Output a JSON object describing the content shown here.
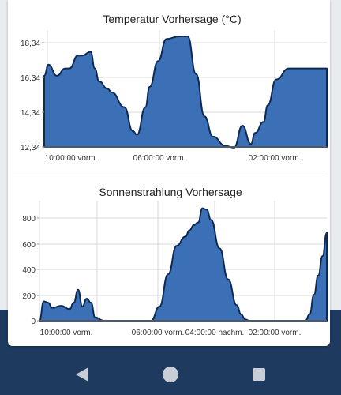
{
  "colors": {
    "fill": "#3b6fb6",
    "stroke": "#0e2a52",
    "grid": "#d9d9d9",
    "axis_text": "#333333",
    "navbar": "#1e3a5f",
    "nav_icon": "#c9ced6"
  },
  "navbar": {
    "back_icon": "triangle-back-icon",
    "home_icon": "circle-home-icon",
    "recent_icon": "square-recents-icon"
  },
  "chart_data": [
    {
      "type": "area",
      "title": "Temperatur Vorhersage (°C)",
      "ylim": [
        12.34,
        18.34
      ],
      "yticks": [
        "12,34",
        "14,34",
        "16,34",
        "18,34"
      ],
      "xticks": [
        "10:00:00 vorm.",
        "06:00:00 vorm.",
        "02:00:00 vorm."
      ],
      "grid": true,
      "x": [
        0,
        1,
        3,
        5,
        6,
        8,
        9,
        11,
        12,
        13,
        15,
        16,
        19,
        21,
        22,
        24,
        25,
        27,
        29,
        32,
        34,
        36,
        38,
        40,
        43,
        45,
        47,
        49,
        50,
        52,
        53,
        55,
        58,
        60,
        61,
        62,
        63,
        64,
        65,
        67
      ],
      "y": [
        16.2,
        16.8,
        16.2,
        16.6,
        16.6,
        17.3,
        17.3,
        17.5,
        16.6,
        15.9,
        15.5,
        15.3,
        14.5,
        13.2,
        13.0,
        14.5,
        15.6,
        17.0,
        18.2,
        18.34,
        18.34,
        16.3,
        14.0,
        12.9,
        12.4,
        12.3,
        13.5,
        12.5,
        13.1,
        13.7,
        14.6,
        16.0,
        16.6,
        16.6,
        16.6,
        16.6,
        16.6,
        16.6,
        16.6,
        16.6
      ]
    },
    {
      "type": "area",
      "title": "Sonnenstrahlung Vorhersage",
      "ylim": [
        0,
        880
      ],
      "yticks": [
        "0",
        "200",
        "400",
        "600",
        "800"
      ],
      "xticks": [
        "10:00:00 vorm.",
        "06:00:00 vorm.",
        "04:00:00 nachm.",
        "02:00:00 vorm."
      ],
      "grid": true,
      "x": [
        0,
        1,
        2,
        3,
        5,
        7,
        8,
        9,
        10,
        11,
        12,
        13,
        15,
        17,
        20,
        26,
        28,
        30,
        32,
        34,
        35,
        36,
        37,
        38,
        39,
        40,
        42,
        44,
        46,
        47,
        48,
        49,
        50,
        51,
        52,
        53,
        54,
        55,
        56,
        57,
        58,
        59,
        60,
        61,
        62,
        63,
        64,
        65,
        66,
        67
      ],
      "y": [
        0,
        150,
        140,
        100,
        115,
        90,
        140,
        240,
        110,
        170,
        140,
        25,
        0,
        0,
        0,
        0,
        110,
        360,
        580,
        650,
        700,
        740,
        760,
        870,
        860,
        780,
        560,
        320,
        120,
        50,
        10,
        0,
        0,
        0,
        0,
        0,
        0,
        0,
        0,
        0,
        0,
        0,
        0,
        0,
        0,
        50,
        200,
        350,
        500,
        680
      ]
    }
  ]
}
